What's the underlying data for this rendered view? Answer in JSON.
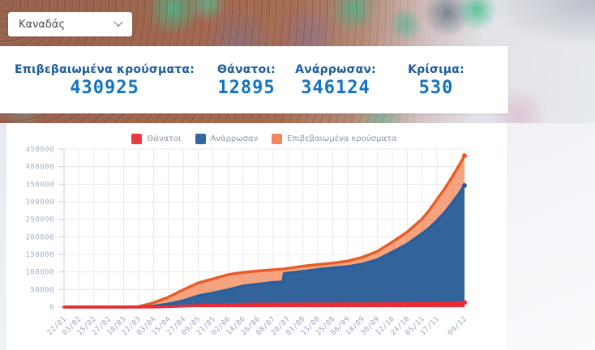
{
  "country_select": {
    "value": "Καναδάς"
  },
  "stats": {
    "confirmed": {
      "label": "Επιβεβαιωμένα κρούσματα:",
      "value": "430925"
    },
    "deaths": {
      "label": "Θάνατοι:",
      "value": "12895"
    },
    "recovered": {
      "label": "Ανάρρωσαν:",
      "value": "346124"
    },
    "critical": {
      "label": "Κρίσιμα:",
      "value": "530"
    }
  },
  "colors": {
    "stat_label": "#1d5c9e",
    "stat_value": "#1173c5",
    "deaths_red": "#e93a44",
    "recovered_blue": "#2e689e",
    "confirmed_orange": "#e95c25",
    "confirmed_fill": "#ef6c30",
    "grid": "#e8e8e8",
    "axis": "#c9d0d8"
  },
  "chart_data": {
    "type": "area",
    "title": "",
    "xlabel": "",
    "ylabel": "",
    "ylim": [
      0,
      450000
    ],
    "y_step": 50000,
    "y_ticks": [
      0,
      50000,
      100000,
      150000,
      200000,
      250000,
      300000,
      350000,
      400000,
      450000
    ],
    "x_day_max": 322,
    "x_tick_labels": [
      "22/01",
      "03/02",
      "15/02",
      "27/02",
      "10/03",
      "22/03",
      "03/04",
      "15/04",
      "27/04",
      "09/05",
      "21/05",
      "02/06",
      "14/06",
      "26/06",
      "08/07",
      "20/07",
      "01/08",
      "13/08",
      "25/08",
      "06/09",
      "18/09",
      "30/09",
      "12/10",
      "24/10",
      "05/11",
      "17/11",
      "09/12"
    ],
    "x_tick_days": [
      0,
      12,
      24,
      36,
      48,
      60,
      72,
      84,
      96,
      108,
      120,
      132,
      144,
      156,
      168,
      180,
      192,
      204,
      216,
      228,
      240,
      252,
      264,
      276,
      288,
      300,
      322
    ],
    "unlabeled_grid_days": [
      312
    ],
    "x_days": [
      0,
      12,
      24,
      36,
      48,
      60,
      72,
      84,
      96,
      108,
      120,
      132,
      144,
      156,
      168,
      176,
      177,
      180,
      192,
      204,
      216,
      228,
      240,
      252,
      264,
      276,
      288,
      294,
      300,
      306,
      312,
      317,
      322
    ],
    "series": [
      {
        "name": "Επιβεβαιωμένα κρούσματα",
        "stroke": "#e95c25",
        "fill": "#ef6c30",
        "fill_opacity": 0.62,
        "values": [
          0,
          4,
          7,
          14,
          95,
          1470,
          12437,
          28379,
          49616,
          68918,
          80493,
          92479,
          98787,
          102794,
          106288,
          108768,
          108980,
          110338,
          116312,
          121234,
          125408,
          131124,
          141911,
          158758,
          185378,
          213959,
          251338,
          277000,
          307103,
          337000,
          370278,
          400000,
          430925
        ]
      },
      {
        "name": "Ανάρρωσαν",
        "stroke": "#2a5f9b",
        "fill": "#33639b",
        "fill_opacity": 1,
        "values": [
          0,
          0,
          1,
          6,
          12,
          135,
          2577,
          8966,
          18268,
          32109,
          40069,
          49217,
          60272,
          65418,
          70232,
          71817,
          95269,
          96587,
          101637,
          107021,
          111587,
          115306,
          122513,
          134914,
          156530,
          179326,
          209399,
          226000,
          246344,
          269000,
          296648,
          320000,
          346124
        ]
      },
      {
        "name": "Θάνατοι",
        "stroke": "#e92c35",
        "fill": "#e92c35",
        "fill_opacity": 1,
        "values": [
          0,
          0,
          0,
          0,
          1,
          21,
          179,
          1010,
          2852,
          4823,
          6028,
          7374,
          8146,
          8508,
          8739,
          8800,
          8810,
          8852,
          8945,
          9015,
          9094,
          9141,
          9205,
          9297,
          9608,
          9922,
          10381,
          10700,
          11086,
          11455,
          11894,
          12350,
          12895
        ]
      }
    ],
    "legend": [
      {
        "label": "Θάνατοι",
        "color": "#e93a44"
      },
      {
        "label": "Ανάρρωσαν",
        "color": "#2e689e"
      },
      {
        "label": "Επιβεβαιωμένα κρούσματα",
        "color": "#f0875c"
      }
    ],
    "legend_position": "top-center",
    "grid": true
  }
}
